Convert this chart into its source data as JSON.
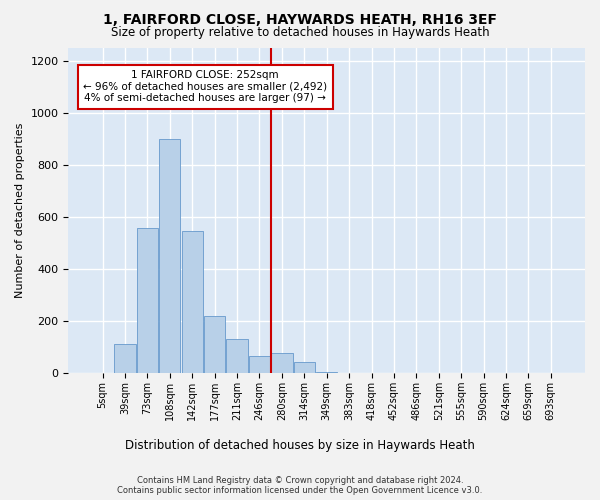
{
  "title": "1, FAIRFORD CLOSE, HAYWARDS HEATH, RH16 3EF",
  "subtitle": "Size of property relative to detached houses in Haywards Heath",
  "xlabel": "Distribution of detached houses by size in Haywards Heath",
  "ylabel": "Number of detached properties",
  "bar_color": "#b8d0e8",
  "bar_edge_color": "#6699cc",
  "background_color": "#dce8f5",
  "grid_color": "#ffffff",
  "vline_color": "#cc0000",
  "annotation_text": "1 FAIRFORD CLOSE: 252sqm\n← 96% of detached houses are smaller (2,492)\n4% of semi-detached houses are larger (97) →",
  "annotation_box_facecolor": "#ffffff",
  "annotation_box_edgecolor": "#cc0000",
  "bins": [
    "5sqm",
    "39sqm",
    "73sqm",
    "108sqm",
    "142sqm",
    "177sqm",
    "211sqm",
    "246sqm",
    "280sqm",
    "314sqm",
    "349sqm",
    "383sqm",
    "418sqm",
    "452sqm",
    "486sqm",
    "521sqm",
    "555sqm",
    "590sqm",
    "624sqm",
    "659sqm",
    "693sqm"
  ],
  "values": [
    0,
    110,
    555,
    900,
    545,
    220,
    130,
    65,
    75,
    40,
    5,
    0,
    0,
    0,
    0,
    0,
    0,
    0,
    0,
    0,
    0
  ],
  "vline_x": 7.5,
  "ylim_max": 1250,
  "yticks": [
    0,
    200,
    400,
    600,
    800,
    1000,
    1200
  ],
  "footer_line1": "Contains HM Land Registry data © Crown copyright and database right 2024.",
  "footer_line2": "Contains public sector information licensed under the Open Government Licence v3.0.",
  "fig_facecolor": "#f2f2f2"
}
